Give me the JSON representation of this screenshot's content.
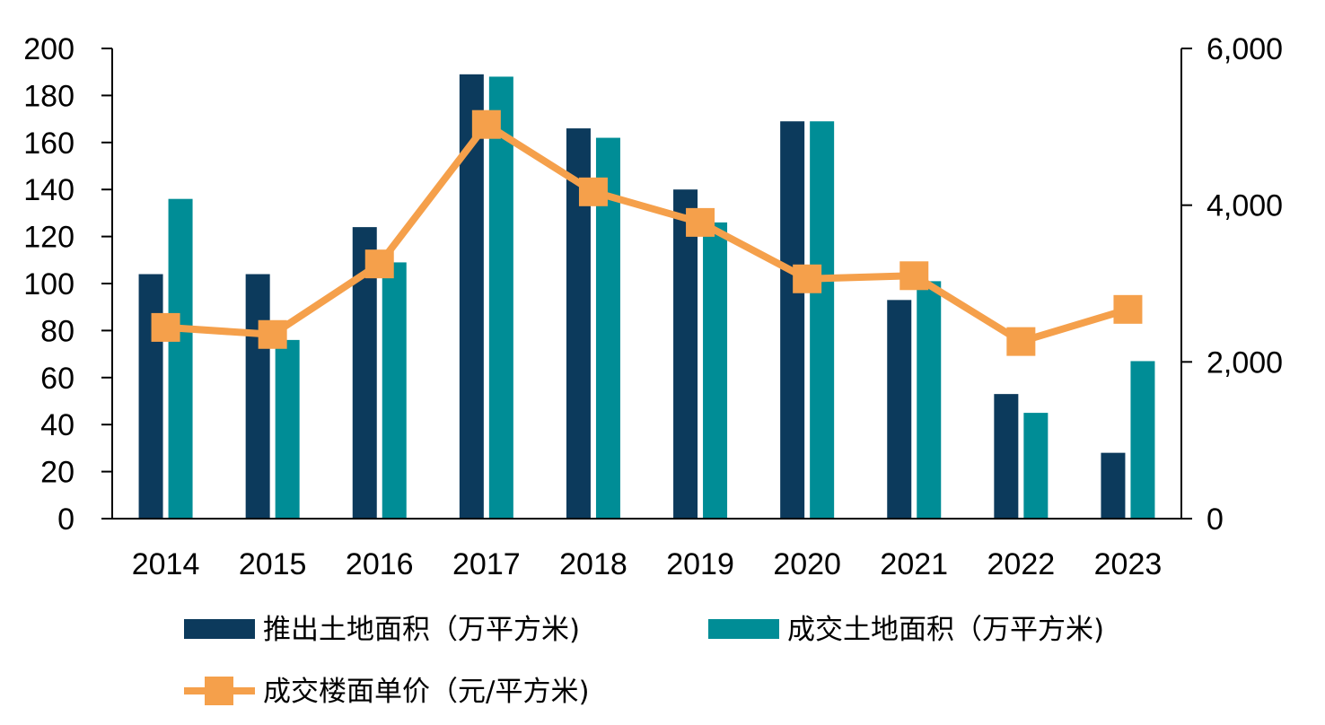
{
  "chart_data": {
    "type": "bar",
    "categories": [
      "2014",
      "2015",
      "2016",
      "2017",
      "2018",
      "2019",
      "2020",
      "2021",
      "2022",
      "2023"
    ],
    "series": [
      {
        "name": "推出土地面积（万平方米)",
        "type": "bar",
        "axis": "left",
        "color": "#0c3a5c",
        "values": [
          104,
          104,
          124,
          189,
          166,
          140,
          169,
          93,
          53,
          28
        ]
      },
      {
        "name": "成交土地面积（万平方米)",
        "type": "bar",
        "axis": "left",
        "color": "#008d96",
        "values": [
          136,
          76,
          109,
          188,
          162,
          126,
          169,
          101,
          45,
          67
        ]
      },
      {
        "name": "成交楼面单价（元/平方米)",
        "type": "line",
        "marker": "square",
        "axis": "right",
        "color": "#f5a04b",
        "values": [
          2440,
          2350,
          3250,
          5030,
          4170,
          3780,
          3060,
          3100,
          2260,
          2670
        ]
      }
    ],
    "y_left": {
      "lim": [
        0,
        200
      ],
      "ticks": [
        "0",
        "20",
        "40",
        "60",
        "80",
        "100",
        "120",
        "140",
        "160",
        "180",
        "200"
      ]
    },
    "y_right": {
      "lim": [
        0,
        6000
      ],
      "ticks": [
        "0",
        "2,000",
        "4,000",
        "6,000"
      ]
    },
    "grid": false,
    "legend_position": "bottom"
  }
}
